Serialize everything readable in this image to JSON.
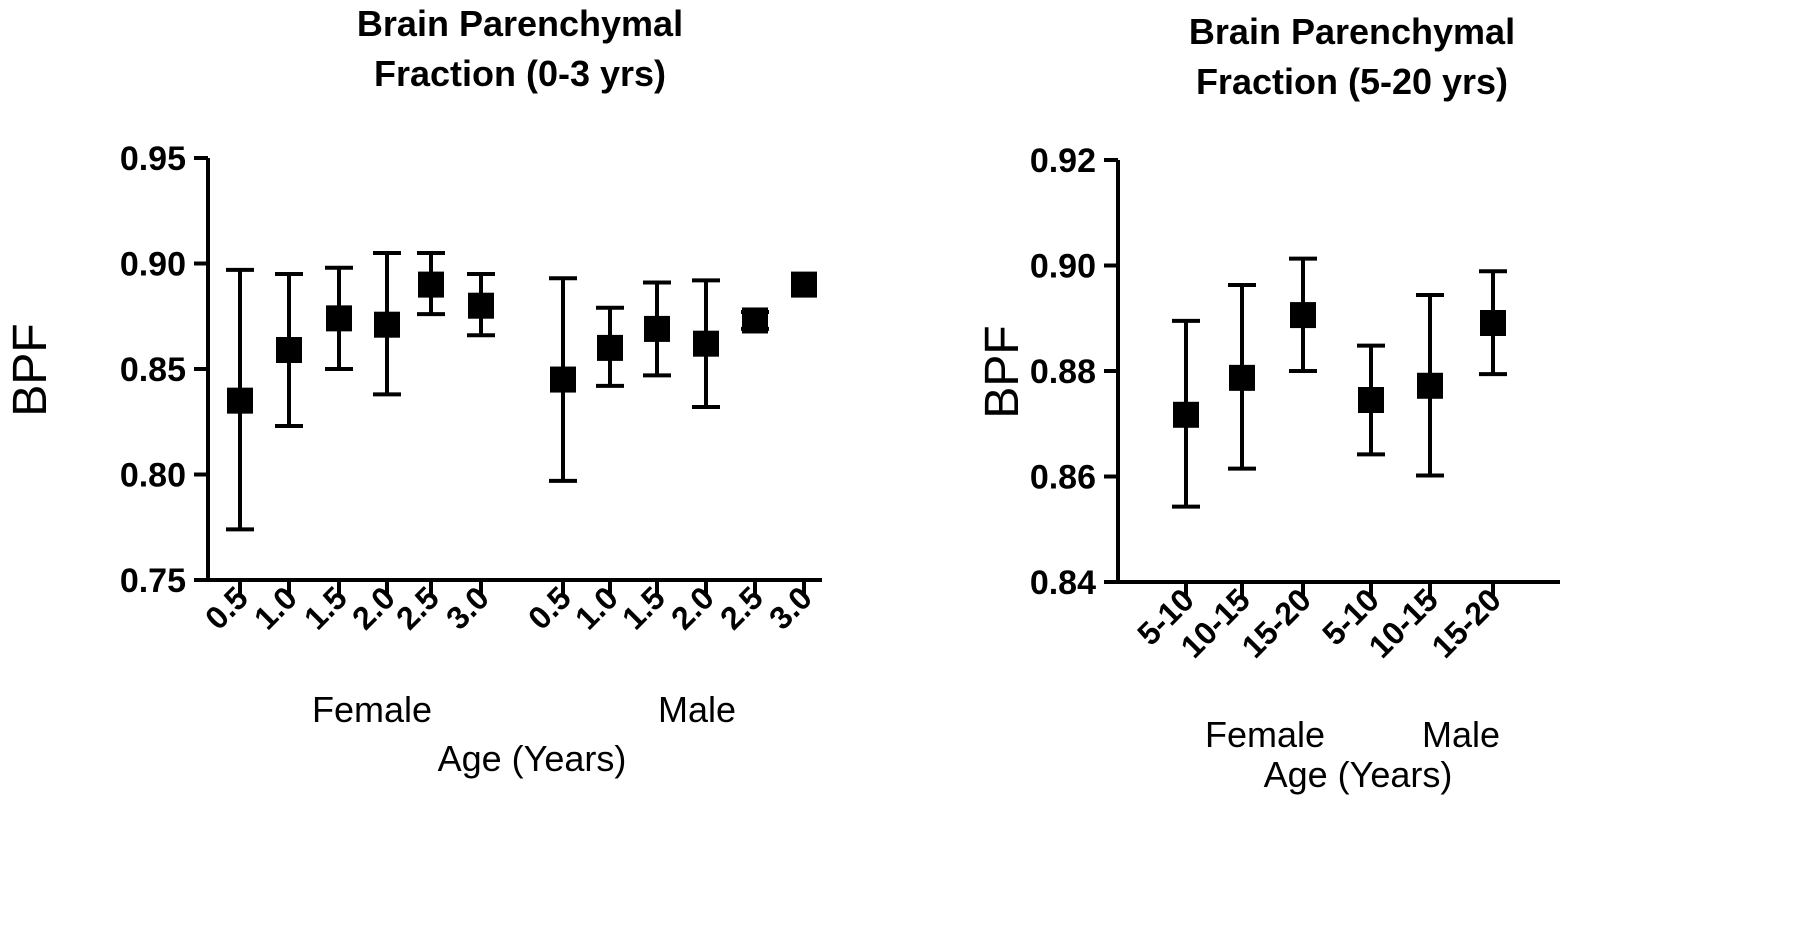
{
  "chart_data": [
    {
      "type": "scatter",
      "title": "Brain Parenchymal Fraction (0-3 yrs)",
      "title_lines": [
        "Brain Parenchymal",
        "Fraction (0-3 yrs)"
      ],
      "ylabel": "BPF",
      "xlabel": "Age (Years)",
      "ylim": [
        0.75,
        0.95
      ],
      "yticks": [
        "0.75",
        "0.80",
        "0.85",
        "0.90",
        "0.95"
      ],
      "grid": false,
      "groups": [
        {
          "name": "Female",
          "points": [
            {
              "x": "0.5",
              "y": 0.835,
              "low": 0.774,
              "high": 0.897
            },
            {
              "x": "1.0",
              "y": 0.859,
              "low": 0.823,
              "high": 0.895
            },
            {
              "x": "1.5",
              "y": 0.874,
              "low": 0.85,
              "high": 0.898
            },
            {
              "x": "2.0",
              "y": 0.871,
              "low": 0.838,
              "high": 0.905
            },
            {
              "x": "2.5",
              "y": 0.89,
              "low": 0.876,
              "high": 0.905
            },
            {
              "x": "3.0",
              "y": 0.88,
              "low": 0.866,
              "high": 0.895
            }
          ]
        },
        {
          "name": "Male",
          "points": [
            {
              "x": "0.5",
              "y": 0.845,
              "low": 0.797,
              "high": 0.893
            },
            {
              "x": "1.0",
              "y": 0.86,
              "low": 0.842,
              "high": 0.879
            },
            {
              "x": "1.5",
              "y": 0.869,
              "low": 0.847,
              "high": 0.891
            },
            {
              "x": "2.0",
              "y": 0.862,
              "low": 0.832,
              "high": 0.892
            },
            {
              "x": "2.5",
              "y": 0.873,
              "low": 0.869,
              "high": 0.877
            },
            {
              "x": "3.0",
              "y": 0.89,
              "low": 0.89,
              "high": 0.89
            }
          ]
        }
      ]
    },
    {
      "type": "scatter",
      "title": "Brain Parenchymal Fraction (5-20 yrs)",
      "title_lines": [
        "Brain Parenchymal",
        "Fraction (5-20 yrs)"
      ],
      "ylabel": "BPF",
      "xlabel": "Age (Years)",
      "ylim": [
        0.84,
        0.92
      ],
      "yticks": [
        "0.84",
        "0.86",
        "0.88",
        "0.90",
        "0.92"
      ],
      "grid": false,
      "groups": [
        {
          "name": "Female",
          "points": [
            {
              "x": "5-10",
              "y": 0.8717,
              "low": 0.8543,
              "high": 0.8895
            },
            {
              "x": "10-15",
              "y": 0.8787,
              "low": 0.8615,
              "high": 0.8963
            },
            {
              "x": "15-20",
              "y": 0.8906,
              "low": 0.88,
              "high": 0.9013
            }
          ]
        },
        {
          "name": "Male",
          "points": [
            {
              "x": "5-10",
              "y": 0.8745,
              "low": 0.8642,
              "high": 0.8848
            },
            {
              "x": "10-15",
              "y": 0.8772,
              "low": 0.8602,
              "high": 0.8944
            },
            {
              "x": "15-20",
              "y": 0.8891,
              "low": 0.8794,
              "high": 0.8989
            }
          ]
        }
      ]
    }
  ]
}
